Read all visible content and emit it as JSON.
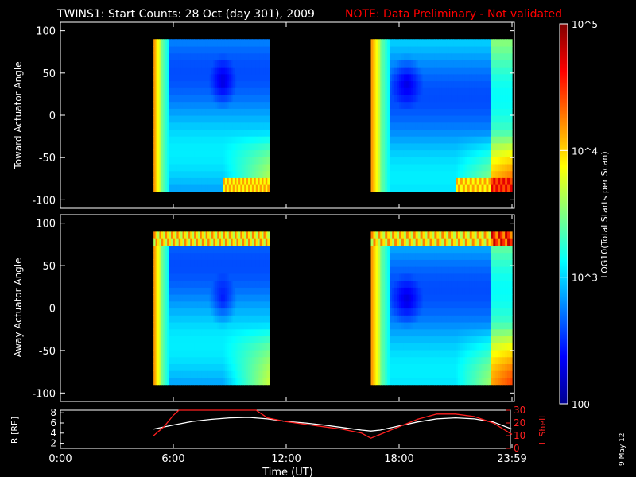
{
  "header": {
    "title": "TWINS1: Start Counts: 28 Oct (day 301), 2009",
    "note": "NOTE: Data Preliminary - Not validated"
  },
  "colorbar": {
    "label": "LOG10(Total Starts per Scan)",
    "ticks": [
      "10^5",
      "10^4",
      "10^3",
      "100"
    ],
    "tick_values": [
      100000,
      10000,
      1000,
      100
    ]
  },
  "footer": {
    "stamp": "9 May 12",
    "xlabel": "Time (UT)"
  },
  "colors": {
    "background": "#000000",
    "axes": "#ffffff",
    "note": "#ff0000",
    "r_line": "#ffffff",
    "l_shell_line": "#ff2020"
  },
  "chart_data": [
    {
      "type": "heatmap",
      "panel": "top",
      "ylabel": "Toward Actuator Angle",
      "xlim": [
        0,
        24
      ],
      "ylim": [
        -110,
        110
      ],
      "y_ticks": [
        100,
        50,
        0,
        -50,
        -100
      ],
      "data_intervals_ut_hours": [
        [
          4.95,
          11.1
        ],
        [
          16.5,
          24.0
        ]
      ],
      "angle_range": [
        -90,
        90
      ],
      "colormap": "jet",
      "scale": "log",
      "color_range": [
        100,
        100000
      ]
    },
    {
      "type": "heatmap",
      "panel": "middle",
      "ylabel": "Away Actuator Angle",
      "xlim": [
        0,
        24
      ],
      "ylim": [
        -110,
        110
      ],
      "y_ticks": [
        100,
        50,
        0,
        -50,
        -100
      ],
      "data_intervals_ut_hours": [
        [
          4.95,
          11.1
        ],
        [
          16.5,
          24.0
        ]
      ],
      "angle_range": [
        -90,
        90
      ],
      "colormap": "jet",
      "scale": "log",
      "color_range": [
        100,
        100000
      ]
    },
    {
      "type": "line",
      "panel": "bottom",
      "xlabel": "Time (UT)",
      "x_tick_labels": [
        "0:00",
        "6:00",
        "12:00",
        "18:00",
        "23:59"
      ],
      "x_ticks": [
        0,
        6,
        12,
        18,
        24
      ],
      "xlim": [
        0,
        24
      ],
      "left_axis": {
        "label": "R [RE]",
        "ylim": [
          1,
          8.5
        ],
        "ticks": [
          2,
          4,
          6,
          8
        ]
      },
      "right_axis": {
        "label": "L Shell",
        "ylim": [
          0,
          30
        ],
        "ticks": [
          0,
          10,
          20,
          30
        ]
      },
      "series": [
        {
          "axis": "left",
          "x": [
            4.95,
            6,
            7,
            8,
            9,
            10,
            11,
            12,
            13,
            14,
            15,
            16,
            16.5,
            17,
            18,
            19,
            20,
            21,
            22,
            23,
            24
          ],
          "y": [
            4.8,
            5.6,
            6.3,
            6.7,
            7.0,
            7.1,
            6.8,
            6.3,
            6.0,
            5.6,
            5.1,
            4.6,
            4.4,
            4.6,
            5.4,
            6.2,
            6.8,
            7.0,
            6.8,
            6.2,
            4.8
          ]
        },
        {
          "axis": "right",
          "x": [
            4.95,
            5.5,
            6,
            6.3,
            10.4,
            11,
            12,
            13,
            14,
            15,
            16,
            16.5,
            17,
            18,
            19,
            20,
            21,
            22,
            23,
            24
          ],
          "y": [
            10,
            17,
            26,
            30,
            30,
            24,
            21,
            19,
            17,
            15,
            12,
            8,
            11,
            17,
            23,
            27,
            27,
            25,
            20,
            11
          ]
        }
      ]
    }
  ]
}
